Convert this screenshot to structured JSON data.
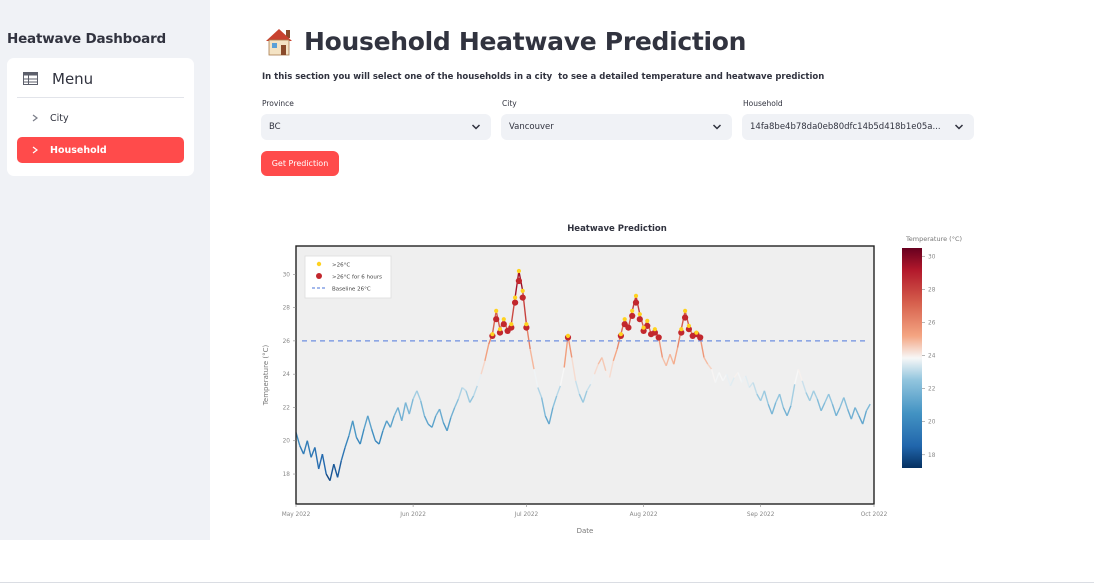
{
  "sidebar": {
    "title": "Heatwave Dashboard",
    "menu_label": "Menu",
    "items": [
      {
        "label": "City",
        "active": false
      },
      {
        "label": "Household",
        "active": true
      }
    ]
  },
  "main": {
    "title": "Household Heatwave Prediction",
    "title_icon": "house-icon",
    "subtitle": "In this section you will select one of the households in a city  to see a detailed temperature and heatwave prediction",
    "province": {
      "label": "Province",
      "value": "BC"
    },
    "city": {
      "label": "City",
      "value": "Vancouver"
    },
    "household": {
      "label": "Household",
      "value": "14fa8be4b78da0eb80dfc14b5d418b1e05a..."
    },
    "button_label": "Get Prediction"
  },
  "chart_data": {
    "type": "line",
    "title": "Heatwave Prediction",
    "xlabel": "Date",
    "ylabel": "Temperature (°C)",
    "x_ticks": [
      "May 2022",
      "Jun 2022",
      "Jul 2022",
      "Aug 2022",
      "Sep 2022",
      "Oct 2022"
    ],
    "y_ticks": [
      18,
      20,
      22,
      24,
      26,
      28,
      30
    ],
    "ylim": [
      16.2,
      31.7
    ],
    "x_range": [
      "2022-05-01",
      "2022-10-01"
    ],
    "baseline": 26,
    "colorbar": {
      "label": "Temperature (°C)",
      "ticks": [
        18,
        20,
        22,
        24,
        26,
        28,
        30
      ],
      "range": [
        17.2,
        30.5
      ],
      "colormap": "RdBu_r"
    },
    "legend": {
      "position": "top-left",
      "entries": [
        ">26°C",
        ">26°C for 6 hours",
        "Baseline 26°C"
      ]
    },
    "colors": {
      "marker_gt26": "#ffd21f",
      "marker_6h": "#c2272d",
      "baseline": "#6e8fe0",
      "plot_bg": "#efefef"
    },
    "series": [
      {
        "name": "Temperature",
        "points": [
          [
            "2022-05-01",
            20.5
          ],
          [
            "2022-05-02",
            19.7
          ],
          [
            "2022-05-03",
            19.2
          ],
          [
            "2022-05-04",
            20.0
          ],
          [
            "2022-05-05",
            19.0
          ],
          [
            "2022-05-06",
            19.6
          ],
          [
            "2022-05-07",
            18.3
          ],
          [
            "2022-05-08",
            19.2
          ],
          [
            "2022-05-09",
            18.0
          ],
          [
            "2022-05-10",
            17.6
          ],
          [
            "2022-05-11",
            18.6
          ],
          [
            "2022-05-12",
            17.8
          ],
          [
            "2022-05-13",
            18.8
          ],
          [
            "2022-05-14",
            19.6
          ],
          [
            "2022-05-15",
            20.3
          ],
          [
            "2022-05-16",
            21.2
          ],
          [
            "2022-05-17",
            20.2
          ],
          [
            "2022-05-18",
            19.8
          ],
          [
            "2022-05-19",
            20.7
          ],
          [
            "2022-05-20",
            21.5
          ],
          [
            "2022-05-21",
            20.7
          ],
          [
            "2022-05-22",
            20.0
          ],
          [
            "2022-05-23",
            19.8
          ],
          [
            "2022-05-24",
            20.6
          ],
          [
            "2022-05-25",
            21.2
          ],
          [
            "2022-05-26",
            20.8
          ],
          [
            "2022-05-27",
            21.5
          ],
          [
            "2022-05-28",
            22.0
          ],
          [
            "2022-05-29",
            21.2
          ],
          [
            "2022-05-30",
            22.3
          ],
          [
            "2022-05-31",
            21.6
          ],
          [
            "2022-06-01",
            22.5
          ],
          [
            "2022-06-02",
            23.0
          ],
          [
            "2022-06-03",
            22.4
          ],
          [
            "2022-06-04",
            21.5
          ],
          [
            "2022-06-05",
            21.0
          ],
          [
            "2022-06-06",
            20.8
          ],
          [
            "2022-06-07",
            21.5
          ],
          [
            "2022-06-08",
            21.9
          ],
          [
            "2022-06-09",
            21.1
          ],
          [
            "2022-06-10",
            20.6
          ],
          [
            "2022-06-11",
            21.4
          ],
          [
            "2022-06-12",
            22.0
          ],
          [
            "2022-06-13",
            22.5
          ],
          [
            "2022-06-14",
            23.2
          ],
          [
            "2022-06-15",
            23.0
          ],
          [
            "2022-06-16",
            22.3
          ],
          [
            "2022-06-17",
            22.7
          ],
          [
            "2022-06-18",
            23.3
          ],
          [
            "2022-06-19",
            24.0
          ],
          [
            "2022-06-20",
            24.8
          ],
          [
            "2022-06-21",
            25.8
          ],
          [
            "2022-06-22",
            26.4
          ],
          [
            "2022-06-23",
            27.8
          ],
          [
            "2022-06-24",
            26.7
          ],
          [
            "2022-06-25",
            27.3
          ],
          [
            "2022-06-26",
            26.6
          ],
          [
            "2022-06-27",
            27.0
          ],
          [
            "2022-06-28",
            28.6
          ],
          [
            "2022-06-29",
            30.2
          ],
          [
            "2022-06-30",
            29.0
          ],
          [
            "2022-07-01",
            27.0
          ],
          [
            "2022-07-02",
            25.5
          ],
          [
            "2022-07-03",
            24.3
          ],
          [
            "2022-07-04",
            23.2
          ],
          [
            "2022-07-05",
            22.6
          ],
          [
            "2022-07-06",
            21.5
          ],
          [
            "2022-07-07",
            21.0
          ],
          [
            "2022-07-08",
            22.0
          ],
          [
            "2022-07-09",
            22.7
          ],
          [
            "2022-07-10",
            23.3
          ],
          [
            "2022-07-11",
            24.4
          ],
          [
            "2022-07-12",
            26.3
          ],
          [
            "2022-07-13",
            25.0
          ],
          [
            "2022-07-14",
            23.6
          ],
          [
            "2022-07-15",
            22.8
          ],
          [
            "2022-07-16",
            22.3
          ],
          [
            "2022-07-17",
            23.0
          ],
          [
            "2022-07-18",
            23.4
          ],
          [
            "2022-07-19",
            24.0
          ],
          [
            "2022-07-20",
            24.6
          ],
          [
            "2022-07-21",
            25.0
          ],
          [
            "2022-07-22",
            24.2
          ],
          [
            "2022-07-23",
            23.8
          ],
          [
            "2022-07-24",
            24.8
          ],
          [
            "2022-07-25",
            25.5
          ],
          [
            "2022-07-26",
            26.4
          ],
          [
            "2022-07-27",
            27.3
          ],
          [
            "2022-07-28",
            26.8
          ],
          [
            "2022-07-29",
            27.8
          ],
          [
            "2022-07-30",
            28.7
          ],
          [
            "2022-07-31",
            27.6
          ],
          [
            "2022-08-01",
            26.8
          ],
          [
            "2022-08-02",
            27.2
          ],
          [
            "2022-08-03",
            26.4
          ],
          [
            "2022-08-04",
            26.7
          ],
          [
            "2022-08-05",
            26.2
          ],
          [
            "2022-08-06",
            25.0
          ],
          [
            "2022-08-07",
            24.5
          ],
          [
            "2022-08-08",
            25.2
          ],
          [
            "2022-08-09",
            24.6
          ],
          [
            "2022-08-10",
            25.6
          ],
          [
            "2022-08-11",
            26.7
          ],
          [
            "2022-08-12",
            27.8
          ],
          [
            "2022-08-13",
            26.9
          ],
          [
            "2022-08-14",
            26.3
          ],
          [
            "2022-08-15",
            26.5
          ],
          [
            "2022-08-16",
            26.2
          ],
          [
            "2022-08-17",
            25.0
          ],
          [
            "2022-08-18",
            24.6
          ],
          [
            "2022-08-19",
            24.3
          ],
          [
            "2022-08-20",
            23.5
          ],
          [
            "2022-08-21",
            24.1
          ],
          [
            "2022-08-22",
            23.6
          ],
          [
            "2022-08-23",
            24.0
          ],
          [
            "2022-08-24",
            23.3
          ],
          [
            "2022-08-25",
            23.8
          ],
          [
            "2022-08-26",
            24.1
          ],
          [
            "2022-08-27",
            23.5
          ],
          [
            "2022-08-28",
            23.9
          ],
          [
            "2022-08-29",
            23.2
          ],
          [
            "2022-08-30",
            23.5
          ],
          [
            "2022-08-31",
            22.8
          ],
          [
            "2022-09-01",
            22.4
          ],
          [
            "2022-09-02",
            23.0
          ],
          [
            "2022-09-03",
            22.2
          ],
          [
            "2022-09-04",
            21.6
          ],
          [
            "2022-09-05",
            22.3
          ],
          [
            "2022-09-06",
            22.8
          ],
          [
            "2022-09-07",
            22.0
          ],
          [
            "2022-09-08",
            21.5
          ],
          [
            "2022-09-09",
            22.1
          ],
          [
            "2022-09-10",
            23.4
          ],
          [
            "2022-09-11",
            24.3
          ],
          [
            "2022-09-12",
            23.6
          ],
          [
            "2022-09-13",
            22.9
          ],
          [
            "2022-09-14",
            22.4
          ],
          [
            "2022-09-15",
            23.0
          ],
          [
            "2022-09-16",
            22.5
          ],
          [
            "2022-09-17",
            21.8
          ],
          [
            "2022-09-18",
            22.3
          ],
          [
            "2022-09-19",
            22.8
          ],
          [
            "2022-09-20",
            22.2
          ],
          [
            "2022-09-21",
            21.5
          ],
          [
            "2022-09-22",
            22.0
          ],
          [
            "2022-09-23",
            22.6
          ],
          [
            "2022-09-24",
            21.9
          ],
          [
            "2022-09-25",
            21.3
          ],
          [
            "2022-09-26",
            22.0
          ],
          [
            "2022-09-27",
            21.5
          ],
          [
            "2022-09-28",
            21.0
          ],
          [
            "2022-09-29",
            21.8
          ],
          [
            "2022-09-30",
            22.2
          ]
        ]
      }
    ],
    "markers_gt26": [
      [
        "2022-06-22",
        26.4
      ],
      [
        "2022-06-23",
        27.8
      ],
      [
        "2022-06-24",
        26.7
      ],
      [
        "2022-06-25",
        27.3
      ],
      [
        "2022-06-27",
        27.0
      ],
      [
        "2022-06-28",
        28.6
      ],
      [
        "2022-06-29",
        30.2
      ],
      [
        "2022-06-30",
        29.0
      ],
      [
        "2022-07-01",
        27.0
      ],
      [
        "2022-07-12",
        26.3
      ],
      [
        "2022-07-26",
        26.4
      ],
      [
        "2022-07-27",
        27.3
      ],
      [
        "2022-07-29",
        27.8
      ],
      [
        "2022-07-30",
        28.7
      ],
      [
        "2022-07-31",
        27.6
      ],
      [
        "2022-08-01",
        26.8
      ],
      [
        "2022-08-02",
        27.2
      ],
      [
        "2022-08-04",
        26.7
      ],
      [
        "2022-08-11",
        26.7
      ],
      [
        "2022-08-12",
        27.8
      ],
      [
        "2022-08-13",
        26.9
      ],
      [
        "2022-08-15",
        26.5
      ]
    ],
    "markers_6h": [
      [
        "2022-06-22",
        26.3
      ],
      [
        "2022-06-23",
        27.3
      ],
      [
        "2022-06-24",
        26.5
      ],
      [
        "2022-06-25",
        27.0
      ],
      [
        "2022-06-26",
        26.6
      ],
      [
        "2022-06-27",
        26.8
      ],
      [
        "2022-06-28",
        28.3
      ],
      [
        "2022-06-29",
        29.6
      ],
      [
        "2022-06-30",
        28.6
      ],
      [
        "2022-07-01",
        26.8
      ],
      [
        "2022-07-12",
        26.2
      ],
      [
        "2022-07-26",
        26.3
      ],
      [
        "2022-07-27",
        27.0
      ],
      [
        "2022-07-28",
        26.8
      ],
      [
        "2022-07-29",
        27.5
      ],
      [
        "2022-07-30",
        28.3
      ],
      [
        "2022-07-31",
        27.3
      ],
      [
        "2022-08-01",
        26.6
      ],
      [
        "2022-08-02",
        26.9
      ],
      [
        "2022-08-03",
        26.4
      ],
      [
        "2022-08-04",
        26.5
      ],
      [
        "2022-08-05",
        26.2
      ],
      [
        "2022-08-11",
        26.5
      ],
      [
        "2022-08-12",
        27.4
      ],
      [
        "2022-08-13",
        26.7
      ],
      [
        "2022-08-14",
        26.3
      ],
      [
        "2022-08-15",
        26.4
      ],
      [
        "2022-08-16",
        26.2
      ]
    ]
  }
}
